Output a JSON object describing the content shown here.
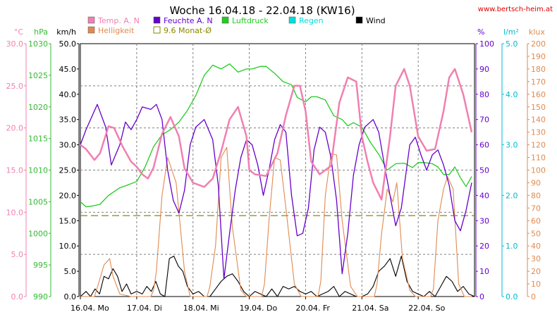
{
  "chart_data": {
    "type": "line",
    "title": "Woche 16.04.18 - 22.04.18 (KW16)",
    "source": "www.bertsch-heim.at",
    "x_labels": [
      "16.04.  Mo",
      "17.04.  Di",
      "18.04.  Mi",
      "19.04.  Do",
      "20.04.  Fr",
      "21.04.  Sa",
      "22.04.  So"
    ],
    "x_range_days": [
      0,
      7
    ],
    "grid": true,
    "axes": [
      {
        "id": "temp",
        "unit": "°C",
        "color": "#f080b0",
        "side": "left",
        "min": 0,
        "max": 30,
        "ticks": [
          "0.0",
          "5.0",
          "10.0",
          "15.0",
          "20.0",
          "25.0",
          "30.0"
        ]
      },
      {
        "id": "hpa",
        "unit": "hPa",
        "color": "#33bb33",
        "side": "left",
        "min": 990,
        "max": 1030,
        "ticks": [
          "990",
          "995",
          "1000",
          "1005",
          "1010",
          "1015",
          "1020",
          "1025",
          "1030"
        ]
      },
      {
        "id": "kmh",
        "unit": "km/h",
        "color": "#000000",
        "side": "left",
        "min": 0,
        "max": 50,
        "ticks": [
          "0.0",
          "5.0",
          "10.0",
          "15.0",
          "20.0",
          "25.0",
          "30.0",
          "35.0",
          "40.0",
          "45.0",
          "50.0"
        ]
      },
      {
        "id": "pct",
        "unit": "%",
        "color": "#6600cc",
        "side": "right",
        "min": 0,
        "max": 100,
        "ticks": [
          "0",
          "10",
          "20",
          "30",
          "40",
          "50",
          "60",
          "70",
          "80",
          "90",
          "100"
        ]
      },
      {
        "id": "lm2",
        "unit": "l/m²",
        "color": "#00bbcc",
        "side": "right",
        "min": 0,
        "max": 5,
        "ticks": [
          "0.0",
          "1.0",
          "2.0",
          "3.0",
          "4.0",
          "5.0"
        ]
      },
      {
        "id": "klux",
        "unit": "klux",
        "color": "#e08a50",
        "side": "right",
        "min": 0,
        "max": 200,
        "ticks": [
          "0",
          "10",
          "20",
          "30",
          "40",
          "50",
          "60",
          "70",
          "80",
          "90",
          "100",
          "110",
          "120",
          "130",
          "140",
          "150",
          "160",
          "170",
          "180",
          "190",
          "200"
        ]
      }
    ],
    "legend": [
      {
        "label": "Temp. A. N",
        "color": "#f080b0",
        "style": "filled"
      },
      {
        "label": "Feuchte A. N",
        "color": "#6600cc",
        "style": "filled"
      },
      {
        "label": "Luftdruck",
        "color": "#22cc22",
        "style": "filled"
      },
      {
        "label": "Regen",
        "color": "#00dddd",
        "style": "filled"
      },
      {
        "label": "Wind",
        "color": "#000000",
        "style": "filled"
      },
      {
        "label": "Helligkeit",
        "color": "#e08a50",
        "style": "filled"
      },
      {
        "label": "9.6 Monat-Ø",
        "color": "#888800",
        "style": "outline"
      }
    ],
    "series": [
      {
        "name": "Temp. A. N",
        "axis": "temp",
        "color": "#f080b0",
        "width": 2.5,
        "x": [
          0,
          0.1,
          0.25,
          0.35,
          0.5,
          0.6,
          0.75,
          0.9,
          1.0,
          1.1,
          1.2,
          1.3,
          1.45,
          1.6,
          1.75,
          1.85,
          2.0,
          2.2,
          2.35,
          2.5,
          2.65,
          2.8,
          2.95,
          3.0,
          3.1,
          3.3,
          3.5,
          3.65,
          3.8,
          3.9,
          4.0,
          4.1,
          4.25,
          4.45,
          4.6,
          4.75,
          4.9,
          5.0,
          5.1,
          5.2,
          5.35,
          5.5,
          5.6,
          5.75,
          5.85,
          6.0,
          6.15,
          6.3,
          6.45,
          6.55,
          6.65,
          6.8,
          6.95
        ],
        "y": [
          18,
          17.5,
          16.2,
          17,
          20.2,
          20,
          17.8,
          16,
          15.4,
          14.5,
          14,
          15.3,
          19.3,
          21.3,
          19,
          15.2,
          13.5,
          13,
          14,
          17.2,
          21,
          22.5,
          19,
          15,
          14.5,
          14.3,
          17,
          21.5,
          25,
          25,
          22,
          16,
          14.5,
          15.5,
          23,
          26,
          25.5,
          19,
          16,
          13.5,
          11.5,
          19,
          25,
          27,
          25,
          19,
          17.3,
          17.5,
          22,
          26,
          27,
          24,
          19.5
        ]
      },
      {
        "name": "Feuchte A. N",
        "axis": "pct",
        "color": "#6600cc",
        "width": 1.3,
        "x": [
          0,
          0.1,
          0.2,
          0.3,
          0.45,
          0.55,
          0.7,
          0.8,
          0.9,
          1.0,
          1.1,
          1.25,
          1.35,
          1.45,
          1.55,
          1.65,
          1.75,
          1.85,
          1.95,
          2.05,
          2.2,
          2.35,
          2.45,
          2.55,
          2.65,
          2.75,
          2.85,
          2.95,
          3.05,
          3.15,
          3.25,
          3.35,
          3.45,
          3.55,
          3.65,
          3.75,
          3.85,
          3.95,
          4.05,
          4.15,
          4.25,
          4.35,
          4.45,
          4.55,
          4.65,
          4.75,
          4.85,
          4.95,
          5.05,
          5.2,
          5.3,
          5.4,
          5.5,
          5.6,
          5.7,
          5.85,
          5.95,
          6.05,
          6.15,
          6.25,
          6.35,
          6.45,
          6.55,
          6.65,
          6.75,
          6.85,
          6.95
        ],
        "y": [
          60,
          66,
          71,
          76,
          67,
          52,
          60,
          69,
          66,
          70,
          75,
          74,
          76,
          70,
          50,
          38,
          33,
          42,
          60,
          67,
          70,
          62,
          44,
          7,
          25,
          42,
          55,
          62,
          60,
          52,
          40,
          50,
          62,
          68,
          65,
          40,
          24,
          25,
          35,
          58,
          67,
          65,
          55,
          38,
          9,
          25,
          48,
          60,
          67,
          70,
          65,
          52,
          40,
          28,
          35,
          60,
          63,
          56,
          50,
          56,
          58,
          52,
          44,
          30,
          26,
          34,
          45
        ]
      },
      {
        "name": "Luftdruck",
        "axis": "hpa",
        "color": "#22cc22",
        "width": 1.3,
        "x": [
          0,
          0.1,
          0.2,
          0.35,
          0.5,
          0.7,
          0.8,
          1.0,
          1.15,
          1.3,
          1.45,
          1.6,
          1.75,
          1.9,
          2.05,
          2.2,
          2.35,
          2.5,
          2.65,
          2.8,
          2.95,
          3.05,
          3.2,
          3.3,
          3.45,
          3.6,
          3.75,
          3.85,
          4.0,
          4.1,
          4.2,
          4.35,
          4.5,
          4.65,
          4.75,
          4.85,
          5.0,
          5.15,
          5.3,
          5.45,
          5.6,
          5.75,
          5.9,
          6.0,
          6.1,
          6.25,
          6.35,
          6.45,
          6.55,
          6.65,
          6.75,
          6.85,
          6.95
        ],
        "y": [
          1005,
          1004.2,
          1004.3,
          1004.6,
          1006,
          1007.2,
          1007.5,
          1008.2,
          1010.5,
          1013.7,
          1015.6,
          1016.4,
          1017.6,
          1019.4,
          1021.8,
          1025,
          1026.6,
          1026,
          1026.8,
          1025.5,
          1026,
          1026,
          1026.4,
          1026.4,
          1025.3,
          1024,
          1023.5,
          1021.5,
          1020.8,
          1021.6,
          1021.6,
          1021.1,
          1018.6,
          1018,
          1017,
          1017.5,
          1016.8,
          1014.4,
          1012.5,
          1010,
          1011,
          1011.1,
          1010.4,
          1011.2,
          1011.2,
          1011,
          1010.5,
          1009.3,
          1009.3,
          1010.5,
          1008.8,
          1007.4,
          1009
        ]
      },
      {
        "name": "Helligkeit",
        "axis": "klux",
        "color": "#e08a50",
        "width": 1.1,
        "x": [
          0,
          0.25,
          0.32,
          0.42,
          0.52,
          0.58,
          0.7,
          0.9,
          1.25,
          1.3,
          1.35,
          1.45,
          1.55,
          1.7,
          1.85,
          1.95,
          2.25,
          2.3,
          2.4,
          2.5,
          2.6,
          2.7,
          2.85,
          2.95,
          3.22,
          3.27,
          3.35,
          3.45,
          3.55,
          3.65,
          3.8,
          3.92,
          4.22,
          4.27,
          4.35,
          4.45,
          4.55,
          4.65,
          4.8,
          4.92,
          5.22,
          5.27,
          5.35,
          5.45,
          5.55,
          5.62,
          5.72,
          5.85,
          5.95,
          6.22,
          6.27,
          6.35,
          6.45,
          6.52,
          6.62,
          6.72,
          6.82,
          6.95
        ],
        "y": [
          0,
          0,
          10,
          25,
          30,
          16,
          2,
          0,
          0,
          5,
          20,
          80,
          110,
          90,
          20,
          0,
          0,
          8,
          40,
          110,
          118,
          55,
          5,
          0,
          0,
          10,
          60,
          110,
          108,
          70,
          10,
          0,
          0,
          12,
          80,
          113,
          112,
          60,
          8,
          0,
          0,
          10,
          50,
          85,
          75,
          90,
          30,
          5,
          0,
          0,
          6,
          60,
          85,
          95,
          85,
          10,
          0,
          0
        ]
      },
      {
        "name": "Wind",
        "axis": "kmh",
        "color": "#000000",
        "width": 1.1,
        "x": [
          0,
          0.1,
          0.18,
          0.26,
          0.34,
          0.42,
          0.5,
          0.58,
          0.66,
          0.74,
          0.82,
          0.9,
          1.0,
          1.1,
          1.18,
          1.26,
          1.34,
          1.42,
          1.5,
          1.58,
          1.66,
          1.74,
          1.82,
          1.9,
          2.0,
          2.1,
          2.2,
          2.3,
          2.4,
          2.5,
          2.6,
          2.7,
          2.8,
          2.9,
          3.0,
          3.1,
          3.2,
          3.3,
          3.4,
          3.5,
          3.6,
          3.7,
          3.8,
          3.9,
          4.0,
          4.1,
          4.2,
          4.3,
          4.4,
          4.5,
          4.6,
          4.7,
          4.8,
          4.9,
          5.0,
          5.1,
          5.2,
          5.3,
          5.4,
          5.5,
          5.6,
          5.7,
          5.8,
          5.9,
          6.0,
          6.1,
          6.2,
          6.3,
          6.4,
          6.5,
          6.6,
          6.7,
          6.8,
          6.9,
          7.0
        ],
        "y": [
          0,
          1,
          0,
          1.5,
          0.5,
          4,
          3.5,
          5.5,
          4,
          1,
          2.5,
          0.5,
          1,
          0.5,
          2,
          1,
          3,
          0.5,
          0,
          7.5,
          8,
          6,
          5,
          2,
          0.5,
          1,
          0,
          0,
          1.5,
          3,
          4,
          4.5,
          3,
          1,
          0,
          1,
          0.5,
          0,
          1.5,
          0,
          2,
          1.5,
          2,
          1,
          0.5,
          1,
          0,
          0.5,
          1,
          2,
          0,
          1,
          0.5,
          0,
          0,
          0.5,
          2,
          5,
          6,
          7.5,
          4,
          8,
          3,
          1,
          0.5,
          0,
          1,
          0,
          2,
          4,
          3,
          1,
          2,
          0.5,
          0
        ]
      },
      {
        "name": "9.6 Monat-Ø",
        "axis": "temp",
        "color": "#888800",
        "width": 1.2,
        "dash": "10 5",
        "x": [
          0,
          7
        ],
        "y": [
          9.6,
          9.6
        ]
      }
    ]
  }
}
